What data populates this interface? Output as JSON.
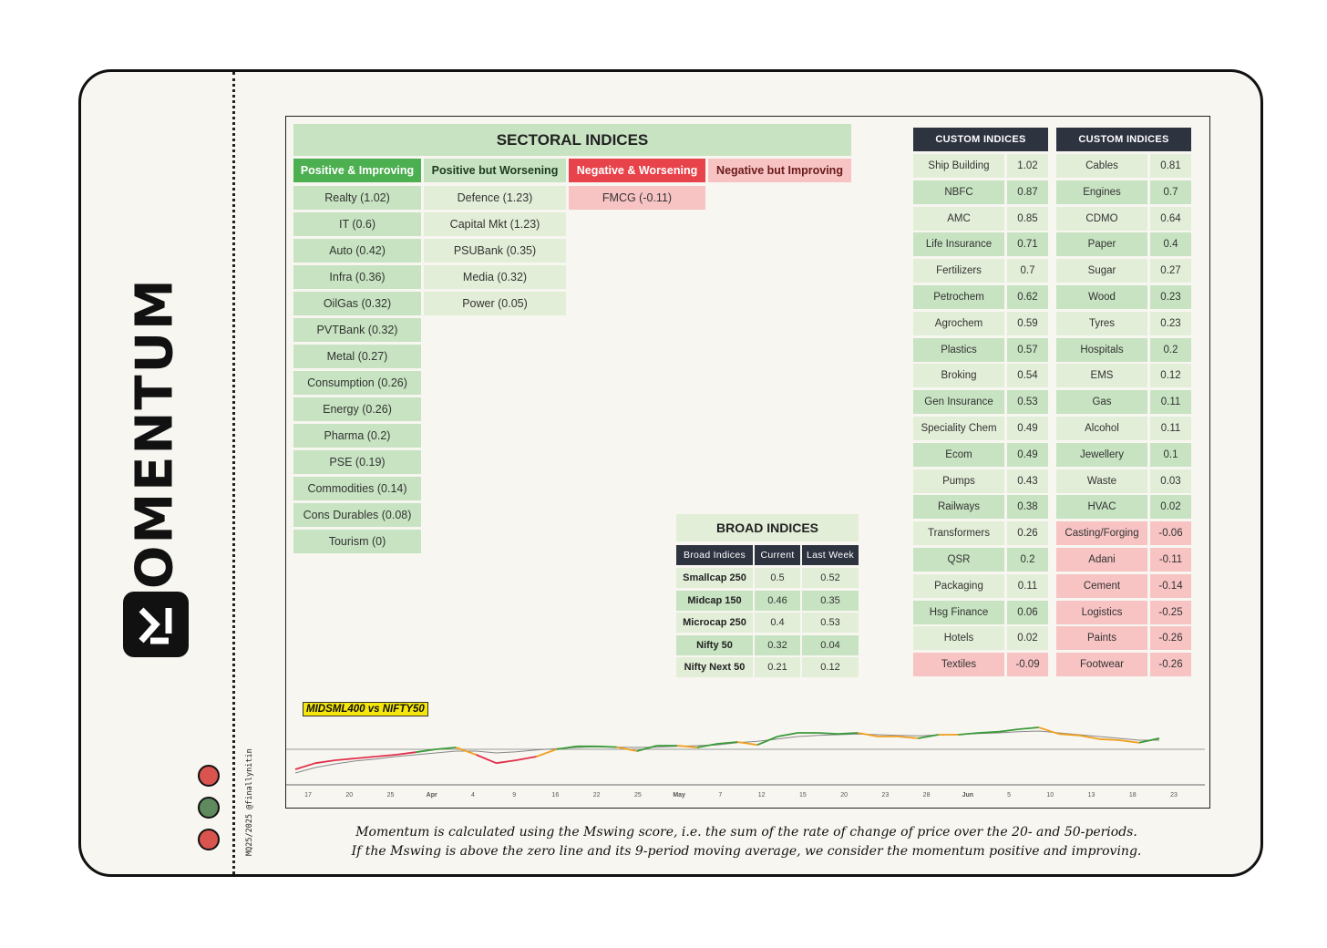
{
  "brand": {
    "name": "MOMENTUM",
    "credit": "MQ25/2025 @finallynitin"
  },
  "sectoral": {
    "title": "SECTORAL INDICES",
    "columns": [
      {
        "header": "Positive & Improving",
        "items": [
          "Realty (1.02)",
          "IT (0.6)",
          "Auto (0.42)",
          "Infra (0.36)",
          "OilGas (0.32)",
          "PVTBank (0.32)",
          "Metal (0.27)",
          "Consumption (0.26)",
          "Energy (0.26)",
          "Pharma (0.2)",
          "PSE (0.19)",
          "Commodities (0.14)",
          "Cons Durables (0.08)",
          "Tourism (0)"
        ]
      },
      {
        "header": "Positive but Worsening",
        "items": [
          "Defence (1.23)",
          "Capital Mkt (1.23)",
          "PSUBank (0.35)",
          "Media (0.32)",
          "Power (0.05)"
        ]
      },
      {
        "header": "Negative & Worsening",
        "items": [
          "FMCG (-0.11)"
        ]
      },
      {
        "header": "Negative but Improving",
        "items": []
      }
    ]
  },
  "custom1": {
    "title": "CUSTOM INDICES",
    "rows": [
      {
        "name": "Ship Building",
        "value": "1.02"
      },
      {
        "name": "NBFC",
        "value": "0.87"
      },
      {
        "name": "AMC",
        "value": "0.85"
      },
      {
        "name": "Life Insurance",
        "value": "0.71"
      },
      {
        "name": "Fertilizers",
        "value": "0.7"
      },
      {
        "name": "Petrochem",
        "value": "0.62"
      },
      {
        "name": "Agrochem",
        "value": "0.59"
      },
      {
        "name": "Plastics",
        "value": "0.57"
      },
      {
        "name": "Broking",
        "value": "0.54"
      },
      {
        "name": "Gen Insurance",
        "value": "0.53"
      },
      {
        "name": "Speciality Chem",
        "value": "0.49"
      },
      {
        "name": "Ecom",
        "value": "0.49"
      },
      {
        "name": "Pumps",
        "value": "0.43"
      },
      {
        "name": "Railways",
        "value": "0.38"
      },
      {
        "name": "Transformers",
        "value": "0.26"
      },
      {
        "name": "QSR",
        "value": "0.2"
      },
      {
        "name": "Packaging",
        "value": "0.11"
      },
      {
        "name": "Hsg Finance",
        "value": "0.06"
      },
      {
        "name": "Hotels",
        "value": "0.02"
      },
      {
        "name": "Textiles",
        "value": "-0.09"
      }
    ]
  },
  "custom2": {
    "title": "CUSTOM INDICES",
    "rows": [
      {
        "name": "Cables",
        "value": "0.81"
      },
      {
        "name": "Engines",
        "value": "0.7"
      },
      {
        "name": "CDMO",
        "value": "0.64"
      },
      {
        "name": "Paper",
        "value": "0.4"
      },
      {
        "name": "Sugar",
        "value": "0.27"
      },
      {
        "name": "Wood",
        "value": "0.23"
      },
      {
        "name": "Tyres",
        "value": "0.23"
      },
      {
        "name": "Hospitals",
        "value": "0.2"
      },
      {
        "name": "EMS",
        "value": "0.12"
      },
      {
        "name": "Gas",
        "value": "0.11"
      },
      {
        "name": "Alcohol",
        "value": "0.11"
      },
      {
        "name": "Jewellery",
        "value": "0.1"
      },
      {
        "name": "Waste",
        "value": "0.03"
      },
      {
        "name": "HVAC",
        "value": "0.02"
      },
      {
        "name": "Casting/Forging",
        "value": "-0.06"
      },
      {
        "name": "Adani",
        "value": "-0.11"
      },
      {
        "name": "Cement",
        "value": "-0.14"
      },
      {
        "name": "Logistics",
        "value": "-0.25"
      },
      {
        "name": "Paints",
        "value": "-0.26"
      },
      {
        "name": "Footwear",
        "value": "-0.26"
      }
    ]
  },
  "broad": {
    "title": "BROAD INDICES",
    "headers": [
      "Broad Indices",
      "Current",
      "Last Week"
    ],
    "rows": [
      {
        "name": "Smallcap 250",
        "current": "0.5",
        "last": "0.52"
      },
      {
        "name": "Midcap 150",
        "current": "0.46",
        "last": "0.35"
      },
      {
        "name": "Microcap 250",
        "current": "0.4",
        "last": "0.53"
      },
      {
        "name": "Nifty 50",
        "current": "0.32",
        "last": "0.04"
      },
      {
        "name": "Nifty Next 50",
        "current": "0.21",
        "last": "0.12"
      }
    ]
  },
  "chart_data": {
    "type": "line",
    "title": "MIDSML400 vs NIFTY50",
    "x_ticks": [
      "17",
      "20",
      "25",
      "Apr",
      "4",
      "9",
      "16",
      "22",
      "25",
      "May",
      "7",
      "12",
      "15",
      "20",
      "23",
      "28",
      "Jun",
      "5",
      "10",
      "13",
      "18",
      "23"
    ],
    "zero_line": 0,
    "series": [
      {
        "values": [
          -0.55,
          -0.38,
          -0.3,
          -0.25,
          -0.2,
          -0.15,
          -0.08,
          0.0,
          0.05,
          -0.15,
          -0.38,
          -0.3,
          -0.2,
          0.0,
          0.08,
          0.08,
          0.06,
          -0.05,
          0.1,
          0.1,
          0.05,
          0.15,
          0.2,
          0.12,
          0.35,
          0.45,
          0.45,
          0.42,
          0.45,
          0.35,
          0.35,
          0.3,
          0.4,
          0.4,
          0.45,
          0.48,
          0.55,
          0.6,
          0.42,
          0.38,
          0.28,
          0.25,
          0.18,
          0.3
        ]
      },
      {
        "values": [
          -0.65,
          -0.5,
          -0.4,
          -0.32,
          -0.27,
          -0.2,
          -0.15,
          -0.1,
          -0.05,
          -0.05,
          -0.1,
          -0.07,
          -0.02,
          0.02,
          0.05,
          0.07,
          0.06,
          0.05,
          0.06,
          0.08,
          0.1,
          0.12,
          0.18,
          0.22,
          0.28,
          0.35,
          0.38,
          0.4,
          0.42,
          0.4,
          0.38,
          0.37,
          0.39,
          0.41,
          0.43,
          0.45,
          0.48,
          0.5,
          0.45,
          0.4,
          0.35,
          0.3,
          0.25,
          0.25
        ]
      }
    ]
  },
  "footnote": {
    "line1": "Momentum is calculated using the Mswing score, i.e. the sum of the rate of change of price over the 20- and 50-periods.",
    "line2": "If the Mswing is above the zero line and its 9-period moving average, we consider the momentum positive and improving."
  },
  "colors": {
    "green_header": "#4caf50",
    "red_header": "#e8424a",
    "pink_header": "#f7c3c3",
    "dark": "#2e3340",
    "line_green": "#3a9a3a",
    "line_orange": "#f0a020",
    "line_red": "#e0304a",
    "line_gray": "#888888"
  }
}
